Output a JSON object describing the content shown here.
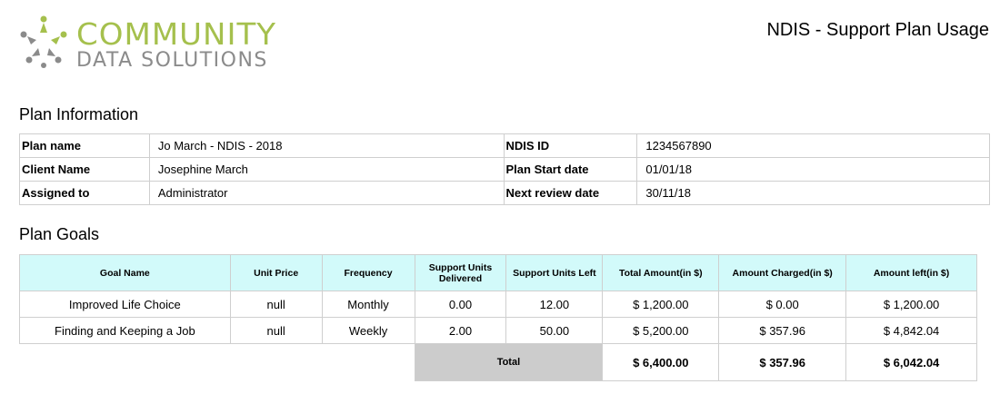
{
  "logo": {
    "line1": "COMMUNITY",
    "line2": "DATA SOLUTIONS",
    "icon": "people-circle-icon",
    "colors": {
      "green": "#a5c04d",
      "grey": "#8b8b8b"
    }
  },
  "report_title": "NDIS - Support Plan Usage",
  "plan_info": {
    "heading": "Plan Information",
    "rows": [
      {
        "label1": "Plan name",
        "value1": "Jo March - NDIS - 2018",
        "label2": "NDIS ID",
        "value2": "1234567890"
      },
      {
        "label1": "Client Name",
        "value1": "Josephine March",
        "label2": "Plan Start date",
        "value2": "01/01/18"
      },
      {
        "label1": "Assigned to",
        "value1": "Administrator",
        "label2": "Next review date",
        "value2": "30/11/18"
      }
    ]
  },
  "plan_goals": {
    "heading": "Plan Goals",
    "header_bg": "#d2fafa",
    "columns": [
      "Goal Name",
      "Unit Price",
      "Frequency",
      "Support Units Delivered",
      "Support Units Left",
      "Total Amount(in $)",
      "Amount Charged(in $)",
      "Amount left(in $)"
    ],
    "rows": [
      [
        "Improved Life Choice",
        "null",
        "Monthly",
        "0.00",
        "12.00",
        "$ 1,200.00",
        "$ 0.00",
        "$ 1,200.00"
      ],
      [
        "Finding and Keeping a Job",
        "null",
        "Weekly",
        "2.00",
        "50.00",
        "$ 5,200.00",
        "$ 357.96",
        "$ 4,842.04"
      ]
    ],
    "total": {
      "label": "Total",
      "total_amount": "$ 6,400.00",
      "amount_charged": "$ 357.96",
      "amount_left": "$ 6,042.04"
    }
  }
}
